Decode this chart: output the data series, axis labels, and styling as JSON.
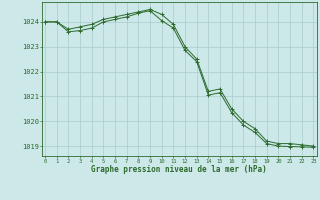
{
  "x": [
    0,
    1,
    2,
    3,
    4,
    5,
    6,
    7,
    8,
    9,
    10,
    11,
    12,
    13,
    14,
    15,
    16,
    17,
    18,
    19,
    20,
    21,
    22,
    23
  ],
  "series1": [
    1024.0,
    1024.0,
    1023.7,
    1023.8,
    1023.9,
    1024.1,
    1024.2,
    1024.3,
    1024.4,
    1024.5,
    1024.3,
    1023.9,
    1023.0,
    1022.5,
    1021.2,
    1021.3,
    1020.5,
    1020.0,
    1019.7,
    1019.2,
    1019.1,
    1019.1,
    1019.05,
    1019.0
  ],
  "series2": [
    1024.0,
    1024.0,
    1023.6,
    1023.65,
    1023.75,
    1024.0,
    1024.1,
    1024.2,
    1024.35,
    1024.45,
    1024.05,
    1023.75,
    1022.85,
    1022.4,
    1021.05,
    1021.15,
    1020.35,
    1019.85,
    1019.55,
    1019.1,
    1019.0,
    1018.98,
    1018.97,
    1018.95
  ],
  "line_color": "#2d6a2d",
  "bg_color": "#cce8e8",
  "grid_color": "#aacccc",
  "axis_color": "#2d6a2d",
  "text_color": "#2d6a2d",
  "xlabel": "Graphe pression niveau de la mer (hPa)",
  "ylim": [
    1018.6,
    1024.8
  ],
  "xlim": [
    -0.3,
    23.3
  ],
  "yticks": [
    1019,
    1020,
    1021,
    1022,
    1023,
    1024
  ],
  "xticks": [
    0,
    1,
    2,
    3,
    4,
    5,
    6,
    7,
    8,
    9,
    10,
    11,
    12,
    13,
    14,
    15,
    16,
    17,
    18,
    19,
    20,
    21,
    22,
    23
  ]
}
